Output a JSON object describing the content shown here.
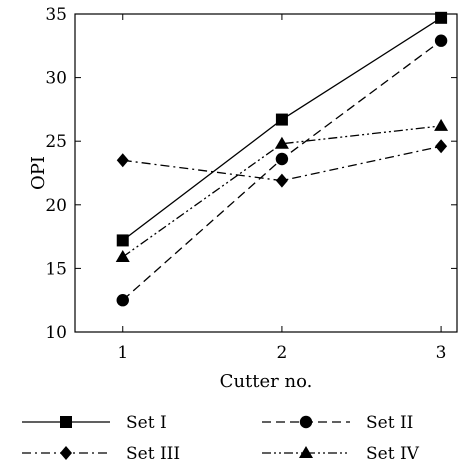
{
  "chart_data": {
    "type": "line",
    "title": "",
    "xlabel": "Cutter no.",
    "ylabel": "OPI",
    "x": [
      1,
      2,
      3
    ],
    "xlim": [
      0.7,
      3.1
    ],
    "ylim": [
      10,
      35
    ],
    "xticks": [
      1,
      2,
      3
    ],
    "yticks": [
      10,
      15,
      20,
      25,
      30,
      35
    ],
    "grid": false,
    "legend_position": "bottom",
    "series": [
      {
        "name": "Set I",
        "values": [
          17.2,
          26.7,
          34.7
        ],
        "marker": "square",
        "dash": "solid"
      },
      {
        "name": "Set II",
        "values": [
          12.5,
          23.6,
          32.9
        ],
        "marker": "circle",
        "dash": "dashed"
      },
      {
        "name": "Set III",
        "values": [
          23.5,
          21.9,
          24.6
        ],
        "marker": "diamond",
        "dash": "dash-dot"
      },
      {
        "name": "Set IV",
        "values": [
          15.9,
          24.8,
          26.2
        ],
        "marker": "triangle",
        "dash": "dash-dot-dot"
      }
    ],
    "colors": {
      "line": "#000000",
      "background": "#ffffff"
    }
  }
}
